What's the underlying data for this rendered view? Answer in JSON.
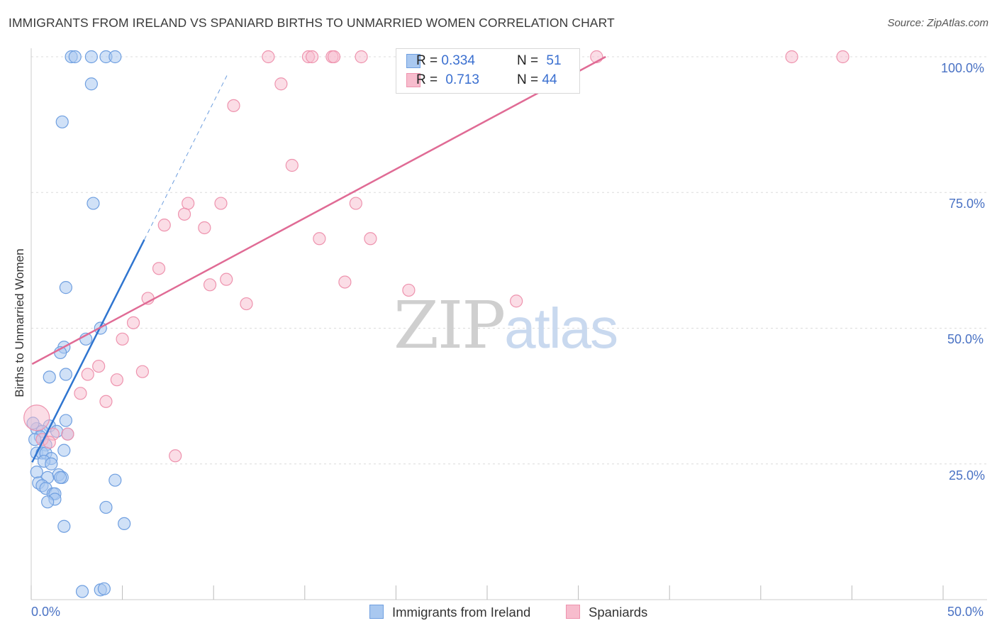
{
  "title": "IMMIGRANTS FROM IRELAND VS SPANIARD BIRTHS TO UNMARRIED WOMEN CORRELATION CHART",
  "source": "Source: ZipAtlas.com",
  "watermark": {
    "zip": "ZIP",
    "atlas": "atlas"
  },
  "legend_top": {
    "rows": [
      {
        "r_label": "R = ",
        "r_value": "0.334",
        "n_label": "N = ",
        "n_value": "51"
      },
      {
        "r_label": "R = ",
        "r_value": "0.713",
        "n_label": "N = ",
        "n_value": "44"
      }
    ]
  },
  "colors": {
    "ireland_fill": "#a9c8f0",
    "ireland_stroke": "#6f9fe0",
    "ireland_line": "#2f75d0",
    "spain_fill": "#f7bccd",
    "spain_stroke": "#ee93ae",
    "spain_line": "#e06b95",
    "grid": "#dcdcdc",
    "axis_text": "#4a72c4"
  },
  "chart_data": {
    "type": "scatter",
    "title": "IMMIGRANTS FROM IRELAND VS SPANIARD BIRTHS TO UNMARRIED WOMEN CORRELATION CHART",
    "xlabel": "",
    "ylabel": "Births to Unmarried Women",
    "xlim": [
      0,
      50
    ],
    "ylim": [
      0,
      100
    ],
    "x_tick_labels": [
      "0.0%",
      "50.0%"
    ],
    "y_tick_labels": [
      "25.0%",
      "50.0%",
      "75.0%",
      "100.0%"
    ],
    "y_tick_values": [
      25,
      50,
      75,
      100
    ],
    "legend_position": "bottom",
    "series": [
      {
        "name": "Immigrants from Ireland",
        "R": 0.334,
        "N": 51,
        "trend": {
          "x": [
            0.05,
            6.2
          ],
          "y": [
            25.3,
            66.3
          ],
          "dashed_to": [
            10.8,
            97.0
          ]
        },
        "points": [
          [
            2.2,
            100
          ],
          [
            2.4,
            100
          ],
          [
            4.1,
            100
          ],
          [
            3.3,
            100
          ],
          [
            4.6,
            100
          ],
          [
            3.3,
            95
          ],
          [
            1.7,
            88
          ],
          [
            3.4,
            73
          ],
          [
            1.9,
            57.5
          ],
          [
            3.8,
            50
          ],
          [
            3.0,
            48
          ],
          [
            1.8,
            46.5
          ],
          [
            1.6,
            45.5
          ],
          [
            1.9,
            41.5
          ],
          [
            1.0,
            41
          ],
          [
            1.9,
            33
          ],
          [
            1.0,
            32
          ],
          [
            0.3,
            31.5
          ],
          [
            0.6,
            31
          ],
          [
            2.0,
            30.5
          ],
          [
            0.5,
            30
          ],
          [
            0.8,
            28.5
          ],
          [
            1.8,
            27.5
          ],
          [
            0.3,
            27
          ],
          [
            0.6,
            27
          ],
          [
            0.8,
            27
          ],
          [
            1.1,
            26
          ],
          [
            0.7,
            25.5
          ],
          [
            1.1,
            25
          ],
          [
            0.3,
            23.5
          ],
          [
            1.5,
            23
          ],
          [
            1.7,
            22.5
          ],
          [
            0.9,
            22.5
          ],
          [
            1.6,
            22.5
          ],
          [
            4.6,
            22
          ],
          [
            0.4,
            21.5
          ],
          [
            0.6,
            21
          ],
          [
            0.8,
            20.5
          ],
          [
            1.2,
            19.5
          ],
          [
            1.3,
            19.5
          ],
          [
            1.3,
            18.5
          ],
          [
            0.9,
            18
          ],
          [
            4.1,
            17
          ],
          [
            1.8,
            13.5
          ],
          [
            5.1,
            14
          ],
          [
            2.8,
            1.5
          ],
          [
            3.8,
            1.8
          ],
          [
            4.0,
            2.0
          ],
          [
            0.1,
            32.5
          ],
          [
            0.2,
            29.5
          ],
          [
            1.4,
            31
          ]
        ]
      },
      {
        "name": "Spaniards",
        "R": 0.713,
        "N": 44,
        "trend": {
          "x": [
            0.05,
            31.5
          ],
          "y": [
            43.4,
            100
          ]
        },
        "points": [
          [
            13.0,
            100
          ],
          [
            15.2,
            100
          ],
          [
            15.4,
            100
          ],
          [
            16.5,
            100
          ],
          [
            16.6,
            100
          ],
          [
            18.1,
            100
          ],
          [
            23.0,
            100
          ],
          [
            23.4,
            100
          ],
          [
            31.0,
            100
          ],
          [
            41.7,
            100
          ],
          [
            44.5,
            100
          ],
          [
            13.7,
            95
          ],
          [
            11.1,
            91
          ],
          [
            14.3,
            80
          ],
          [
            8.6,
            73
          ],
          [
            10.4,
            73
          ],
          [
            17.8,
            73
          ],
          [
            8.4,
            71
          ],
          [
            7.3,
            69
          ],
          [
            9.5,
            68.5
          ],
          [
            15.8,
            66.5
          ],
          [
            18.6,
            66.5
          ],
          [
            7.0,
            61
          ],
          [
            10.7,
            59
          ],
          [
            9.8,
            58
          ],
          [
            17.2,
            58.5
          ],
          [
            20.7,
            57
          ],
          [
            6.4,
            55.5
          ],
          [
            11.8,
            54.5
          ],
          [
            26.6,
            55
          ],
          [
            5.6,
            51
          ],
          [
            5.0,
            48
          ],
          [
            3.7,
            43
          ],
          [
            6.1,
            42
          ],
          [
            3.1,
            41.5
          ],
          [
            4.7,
            40.5
          ],
          [
            2.7,
            38
          ],
          [
            4.1,
            36.5
          ],
          [
            0.3,
            33.5
          ],
          [
            1.2,
            30.5
          ],
          [
            0.6,
            29.5
          ],
          [
            2.0,
            30.5
          ],
          [
            7.9,
            26.5
          ],
          [
            1.0,
            29
          ]
        ]
      }
    ]
  }
}
